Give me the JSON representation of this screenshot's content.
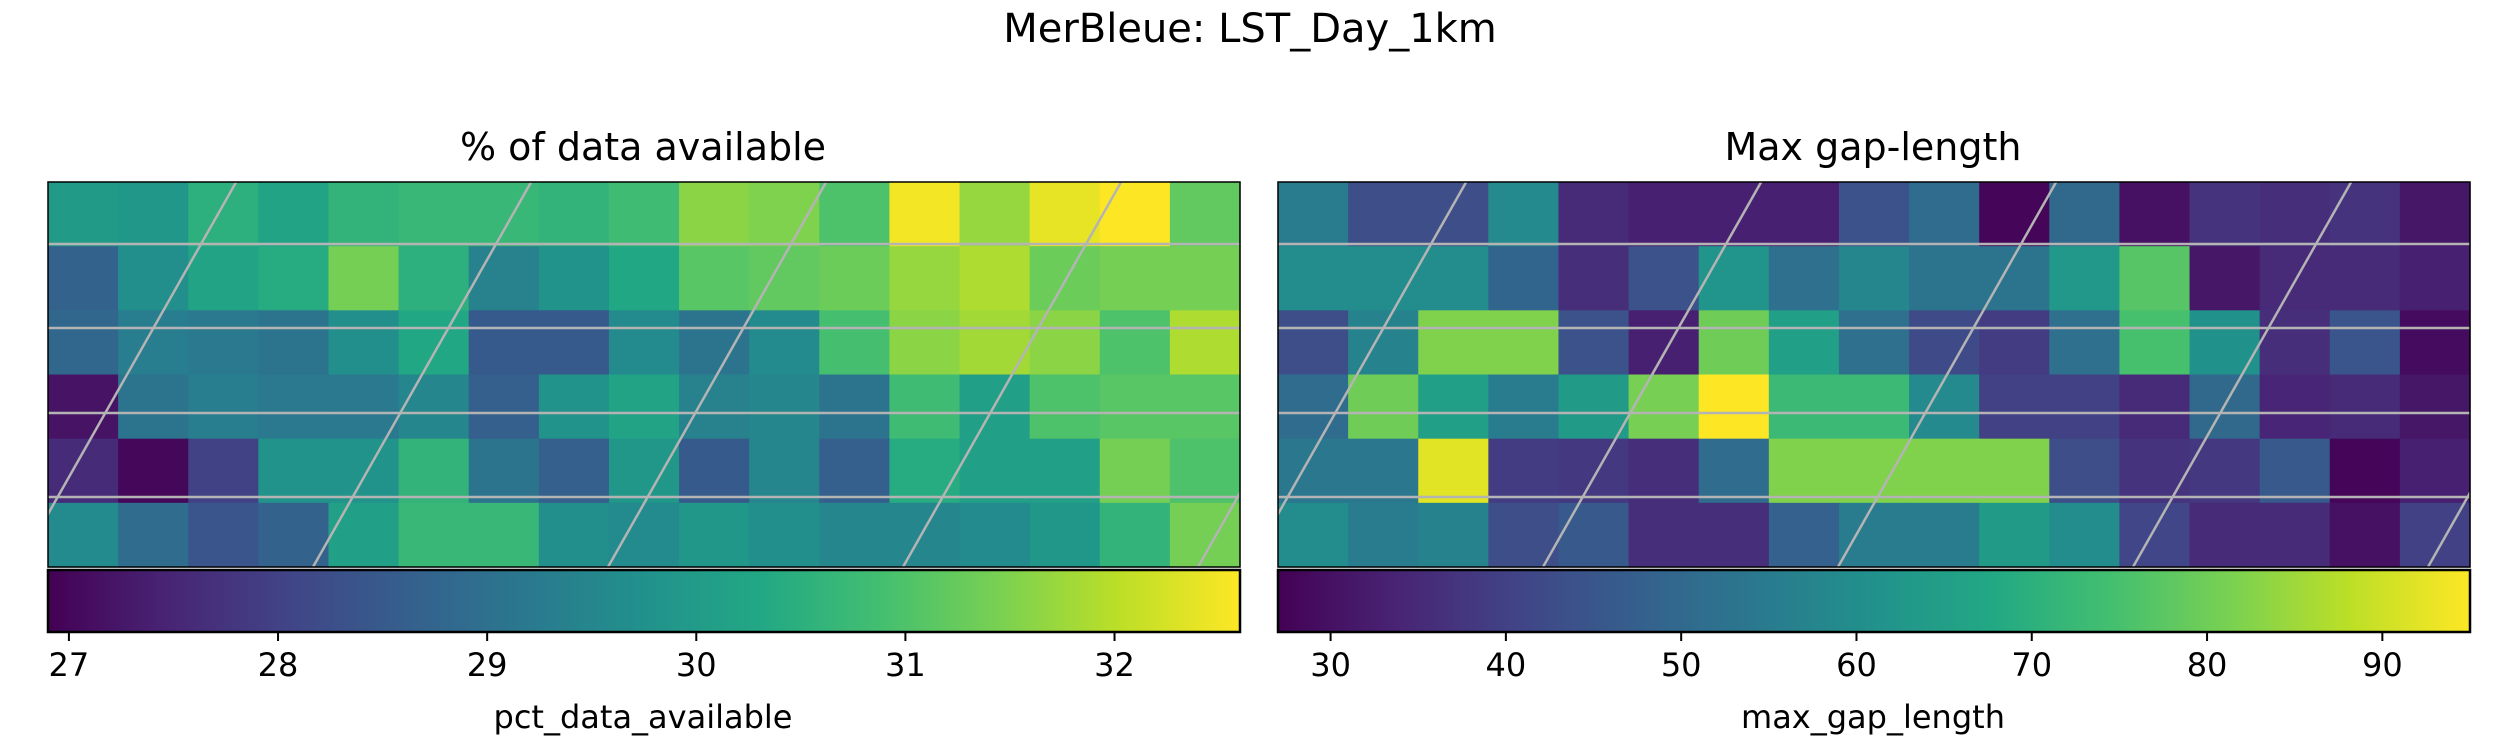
{
  "figure": {
    "suptitle": "MerBleue: LST_Day_1km"
  },
  "colors": {
    "viridis": [
      "#440154",
      "#482475",
      "#414487",
      "#355f8d",
      "#2a788e",
      "#21918c",
      "#22a884",
      "#44bf70",
      "#7ad151",
      "#bddf26",
      "#fde725"
    ],
    "grid_lines": "#b4b4b4"
  },
  "chart_data": [
    {
      "type": "heatmap",
      "title": "% of data available",
      "colorbar_label": "pct_data_available",
      "vmin": 26.9,
      "vmax": 32.6,
      "ticks": [
        27,
        28,
        29,
        30,
        31,
        32
      ],
      "tick_labels": [
        "27",
        "28",
        "29",
        "30",
        "31",
        "32"
      ],
      "rows": 6,
      "cols": 17,
      "values": [
        [
          30.0,
          29.9,
          30.5,
          30.2,
          30.6,
          30.7,
          30.7,
          30.6,
          30.8,
          31.6,
          31.5,
          31.0,
          32.5,
          31.7,
          32.4,
          32.6,
          31.2
        ],
        [
          28.7,
          29.7,
          30.2,
          30.4,
          31.4,
          30.5,
          29.4,
          29.8,
          30.3,
          31.1,
          31.2,
          31.3,
          31.7,
          31.9,
          31.3,
          31.4,
          31.4
        ],
        [
          28.8,
          29.3,
          29.2,
          29.1,
          29.7,
          30.3,
          28.5,
          28.5,
          29.6,
          29.1,
          29.6,
          30.9,
          31.6,
          31.8,
          31.6,
          31.0,
          31.9
        ],
        [
          27.2,
          29.1,
          29.3,
          29.2,
          29.2,
          29.5,
          28.6,
          29.8,
          30.2,
          29.4,
          29.5,
          29.1,
          30.8,
          30.1,
          31.0,
          31.1,
          31.1
        ],
        [
          27.6,
          27.0,
          28.0,
          29.8,
          29.8,
          30.6,
          29.1,
          28.6,
          29.9,
          28.5,
          29.5,
          28.6,
          30.4,
          30.1,
          30.1,
          31.4,
          31.0
        ],
        [
          29.6,
          28.9,
          28.4,
          28.7,
          30.1,
          30.7,
          30.7,
          29.7,
          29.6,
          29.9,
          29.7,
          29.5,
          29.5,
          29.6,
          29.9,
          30.6,
          31.4
        ]
      ]
    },
    {
      "type": "heatmap",
      "title": "Max gap-length",
      "colorbar_label": "max_gap_length",
      "vmin": 27,
      "vmax": 95,
      "ticks": [
        30,
        40,
        50,
        60,
        70,
        80,
        90
      ],
      "tick_labels": [
        "30",
        "40",
        "50",
        "60",
        "70",
        "80",
        "90"
      ],
      "rows": 6,
      "cols": 17,
      "values": [
        [
          55,
          43,
          43,
          59,
          35,
          33,
          33,
          33,
          44,
          51,
          28,
          50,
          30,
          37,
          36,
          37,
          31
        ],
        [
          60,
          60,
          60,
          49,
          36,
          44,
          62,
          52,
          58,
          53,
          53,
          63,
          77,
          31,
          35,
          35,
          33
        ],
        [
          43,
          57,
          82,
          82,
          44,
          33,
          80,
          65,
          52,
          42,
          39,
          52,
          75,
          61,
          36,
          45,
          29
        ],
        [
          51,
          80,
          65,
          55,
          64,
          81,
          95,
          73,
          73,
          59,
          40,
          40,
          35,
          50,
          34,
          35,
          31
        ],
        [
          54,
          54,
          92,
          39,
          38,
          36,
          51,
          82,
          82,
          82,
          82,
          43,
          37,
          38,
          46,
          28,
          33
        ],
        [
          60,
          55,
          57,
          43,
          46,
          36,
          36,
          48,
          55,
          55,
          64,
          60,
          41,
          35,
          35,
          30,
          40
        ]
      ]
    }
  ]
}
